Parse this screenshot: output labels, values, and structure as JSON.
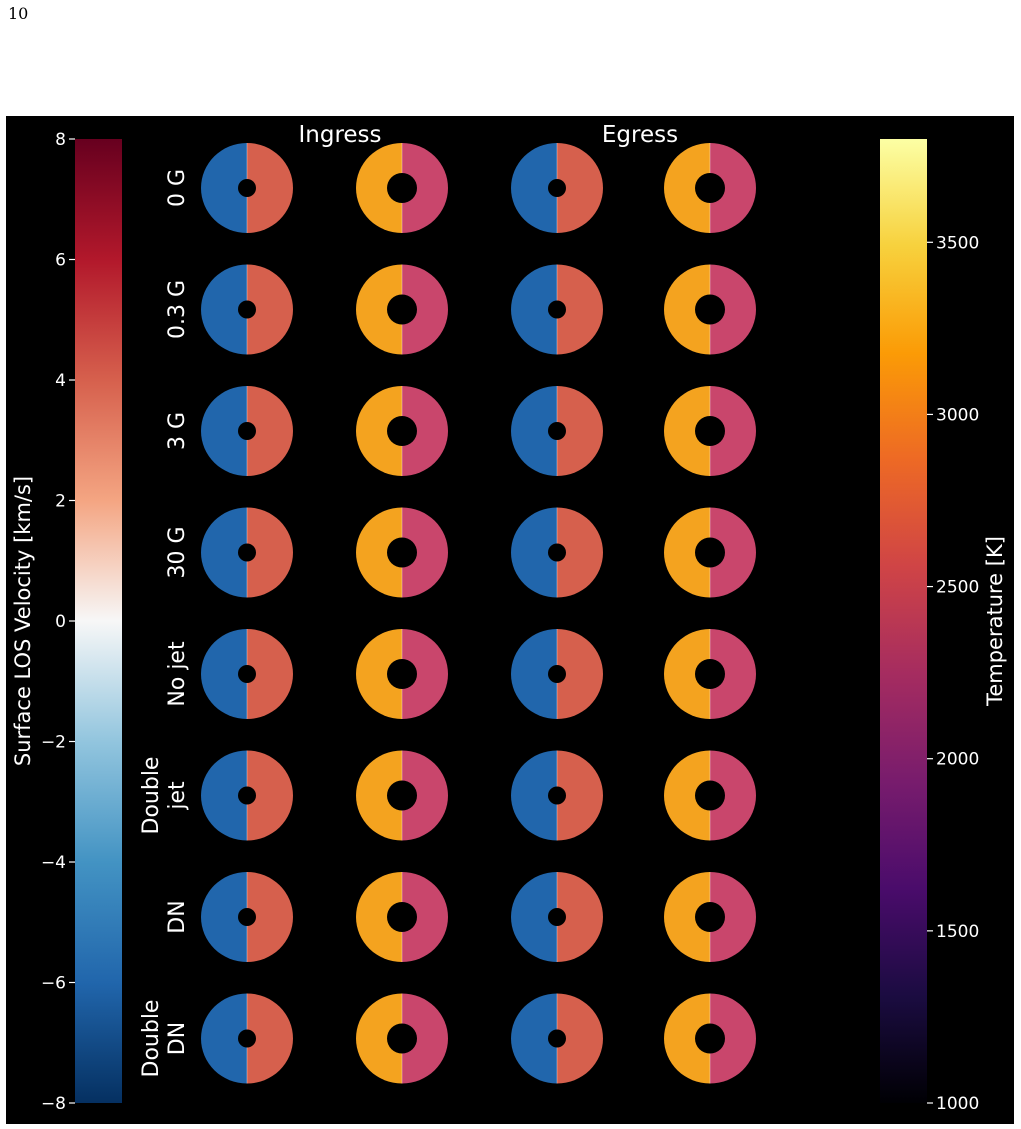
{
  "page_number": "10",
  "columns": [
    "Ingress",
    "Egress"
  ],
  "rows": [
    {
      "label_lines": [
        "0 G"
      ]
    },
    {
      "label_lines": [
        "0.3 G"
      ]
    },
    {
      "label_lines": [
        "3 G"
      ]
    },
    {
      "label_lines": [
        "30 G"
      ]
    },
    {
      "label_lines": [
        "No jet"
      ]
    },
    {
      "label_lines": [
        "Double",
        "jet"
      ]
    },
    {
      "label_lines": [
        "DN"
      ]
    },
    {
      "label_lines": [
        "Double",
        "DN"
      ]
    }
  ],
  "colorbars": {
    "velocity": {
      "label": "Surface LOS Velocity [km/s]",
      "min": -8,
      "max": 8,
      "ticks": [
        "8",
        "6",
        "4",
        "2",
        "0",
        "−2",
        "−4",
        "−6",
        "−8"
      ],
      "tick_values": [
        8,
        6,
        4,
        2,
        0,
        -2,
        -4,
        -6,
        -8
      ],
      "colormap": "RdBu_r",
      "stops": [
        "#053061",
        "#2166ac",
        "#4393c3",
        "#92c5de",
        "#f7f7f7",
        "#f4a582",
        "#d6604d",
        "#b2182b",
        "#67001f"
      ]
    },
    "temperature": {
      "label": "Temperature [K]",
      "min": 1000,
      "max": 3800,
      "ticks": [
        "3500",
        "3000",
        "2500",
        "2000",
        "1500",
        "1000"
      ],
      "tick_values": [
        3500,
        3000,
        2500,
        2000,
        1500,
        1000
      ],
      "colormap": "inferno",
      "stops": [
        "#000004",
        "#1b0c41",
        "#4a0c6b",
        "#781c6d",
        "#a52c60",
        "#cf4446",
        "#ed6925",
        "#fb9b06",
        "#f7d13d",
        "#fcffa4"
      ]
    }
  },
  "panel_colors": {
    "velocity_left": "#2166ac",
    "velocity_right": "#d6604d",
    "temperature_left": "#f4a31f",
    "temperature_right": "#c9466c"
  }
}
